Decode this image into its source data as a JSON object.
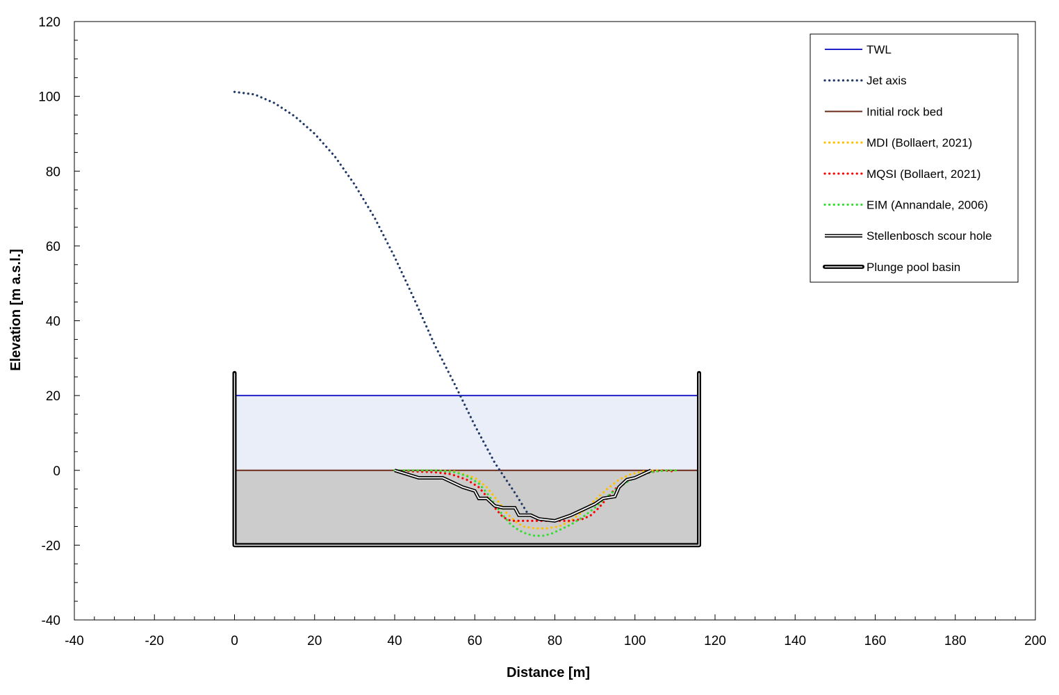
{
  "chart_data": {
    "type": "line",
    "title": "",
    "xlabel": "Distance [m]",
    "ylabel": "Elevation [m a.s.l.]",
    "xlim": [
      -40,
      200
    ],
    "ylim": [
      -40,
      120
    ],
    "x_major_ticks": [
      -40,
      -20,
      0,
      20,
      40,
      60,
      80,
      100,
      120,
      140,
      160,
      180,
      200
    ],
    "y_major_ticks": [
      -40,
      -20,
      0,
      20,
      40,
      60,
      80,
      100,
      120
    ],
    "x_minor_step": 5,
    "y_minor_step": 5,
    "grid": false,
    "legend_position": "top-right",
    "water_fill": {
      "x": [
        0,
        116
      ],
      "y_bottom": 0,
      "y_top": 20,
      "color": "#e9eef8"
    },
    "rock_fill": {
      "x": [
        0,
        116
      ],
      "y_bottom": -20,
      "y_top": 0,
      "color": "#cccccc"
    },
    "series": [
      {
        "name": "TWL",
        "style": "solid",
        "color": "#2020c8",
        "x": [
          0,
          116
        ],
        "y": [
          20,
          20
        ]
      },
      {
        "name": "Jet axis",
        "style": "dotted",
        "color": "#1f3864",
        "x": [
          0,
          5,
          10,
          15,
          20,
          25,
          30,
          35,
          40,
          45,
          50,
          55,
          60,
          62.5,
          65,
          70,
          73.5
        ],
        "y": [
          101.2,
          100.5,
          98.2,
          94.7,
          90.0,
          84.0,
          76.4,
          67.5,
          57.0,
          45.5,
          33.5,
          23.0,
          12.0,
          7.0,
          2.0,
          -6.0,
          -12.0
        ]
      },
      {
        "name": "Initial rock bed",
        "style": "solid",
        "color": "#6b2a1a",
        "x": [
          0,
          116
        ],
        "y": [
          0,
          0
        ]
      },
      {
        "name": "MDI (Bollaert, 2021)",
        "style": "dotted",
        "color": "#ffc000",
        "x": [
          40,
          45,
          50,
          55,
          60,
          63,
          66,
          68,
          70,
          72,
          75,
          78,
          81,
          84,
          87,
          90,
          93,
          96,
          99,
          102,
          105,
          108,
          111
        ],
        "y": [
          0,
          0,
          0,
          -0.3,
          -2,
          -4.5,
          -8.5,
          -11.5,
          -13.5,
          -15,
          -15.5,
          -15.5,
          -15,
          -13.5,
          -11,
          -8,
          -5,
          -2.5,
          -1,
          -0.3,
          0,
          0,
          0
        ]
      },
      {
        "name": "MQSI (Bollaert, 2021)",
        "style": "dotted",
        "color": "#ff0000",
        "x": [
          40,
          45,
          50,
          54,
          58,
          61,
          63,
          65,
          67,
          69,
          72,
          75,
          78,
          81,
          84,
          87,
          89,
          91,
          93,
          95,
          98,
          101,
          104,
          107,
          110
        ],
        "y": [
          0,
          -0.3,
          -0.5,
          -1,
          -2.5,
          -4.5,
          -7,
          -10,
          -12.5,
          -13.5,
          -13.5,
          -13.5,
          -13.5,
          -13.5,
          -13.5,
          -13,
          -12,
          -10,
          -7.5,
          -5,
          -3,
          -1.5,
          -0.5,
          0,
          -0.3
        ]
      },
      {
        "name": "EIM (Annandale, 2006)",
        "style": "dotted",
        "color": "#33dd33",
        "x": [
          40,
          45,
          50,
          55,
          58,
          61,
          63,
          65,
          67,
          69,
          71,
          73,
          75,
          77,
          79,
          81,
          84,
          87,
          90,
          93,
          96,
          99,
          102,
          105,
          108,
          111
        ],
        "y": [
          0,
          0,
          0,
          -0.5,
          -1.5,
          -3.5,
          -6,
          -9,
          -12,
          -14.5,
          -16,
          -17,
          -17.5,
          -17.5,
          -17,
          -16,
          -14.5,
          -12.5,
          -10,
          -7,
          -4.5,
          -2.5,
          -1,
          -0.3,
          0,
          0
        ]
      },
      {
        "name": "Stellenbosch scour hole",
        "style": "double",
        "color": "#000000",
        "x": [
          40,
          46,
          52,
          57,
          60,
          61,
          63,
          65,
          67,
          70,
          71,
          74,
          76,
          80,
          84,
          87,
          90,
          92,
          95,
          96,
          98,
          100,
          104
        ],
        "y": [
          0,
          -2,
          -2,
          -4.5,
          -5.5,
          -7.5,
          -7.5,
          -9.5,
          -10,
          -10,
          -12,
          -12,
          -13,
          -13.5,
          -12,
          -10.5,
          -9,
          -7.5,
          -7,
          -4.5,
          -2.5,
          -2,
          0
        ]
      },
      {
        "name": "Plunge pool basin",
        "style": "thick-double",
        "color": "#000000",
        "x": [
          0,
          0,
          116,
          116
        ],
        "y": [
          26,
          -20,
          -20,
          26
        ]
      }
    ]
  }
}
